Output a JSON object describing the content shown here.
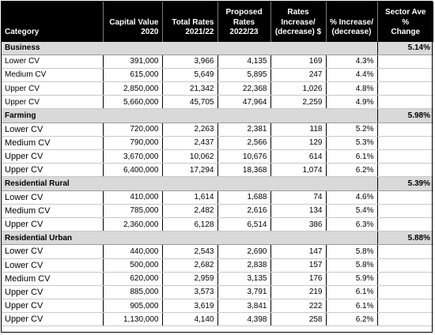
{
  "headers": [
    [
      "Category"
    ],
    [
      "Capital Value",
      "2020"
    ],
    [
      "Total Rates",
      "2021/22"
    ],
    [
      "Proposed",
      "Rates",
      "2022/23"
    ],
    [
      "Rates",
      "Increase/",
      "(decrease) $"
    ],
    [
      "% Increase/",
      "(decrease)"
    ],
    [
      "Sector Ave %",
      "Change"
    ]
  ],
  "groups": [
    {
      "name": "Business",
      "sector_avg": "5.14%",
      "small": true,
      "rows": [
        {
          "cv": "Lower CV",
          "capital": "391,000",
          "total": "3,966",
          "proposed": "4,135",
          "change": "169",
          "pct": "4.3%"
        },
        {
          "cv": "Medium CV",
          "capital": "615,000",
          "total": "5,649",
          "proposed": "5,895",
          "change": "247",
          "pct": "4.4%"
        },
        {
          "cv": "Upper CV",
          "capital": "2,850,000",
          "total": "21,342",
          "proposed": "22,368",
          "change": "1,026",
          "pct": "4.8%"
        },
        {
          "cv": "Upper CV",
          "capital": "5,660,000",
          "total": "45,705",
          "proposed": "47,964",
          "change": "2,259",
          "pct": "4.9%"
        }
      ]
    },
    {
      "name": "Farming",
      "sector_avg": "5.98%",
      "small": false,
      "rows": [
        {
          "cv": "Lower CV",
          "capital": "720,000",
          "total": "2,263",
          "proposed": "2,381",
          "change": "118",
          "pct": "5.2%"
        },
        {
          "cv": "Medium CV",
          "capital": "790,000",
          "total": "2,437",
          "proposed": "2,566",
          "change": "129",
          "pct": "5.3%"
        },
        {
          "cv": "Upper CV",
          "capital": "3,670,000",
          "total": "10,062",
          "proposed": "10,676",
          "change": "614",
          "pct": "6.1%"
        },
        {
          "cv": "Upper CV",
          "capital": "6,400,000",
          "total": "17,294",
          "proposed": "18,368",
          "change": "1,074",
          "pct": "6.2%"
        }
      ]
    },
    {
      "name": "Residential Rural",
      "sector_avg": "5.39%",
      "small": false,
      "rows": [
        {
          "cv": "Lower CV",
          "capital": "410,000",
          "total": "1,614",
          "proposed": "1,688",
          "change": "74",
          "pct": "4.6%"
        },
        {
          "cv": "Medium CV",
          "capital": "785,000",
          "total": "2,482",
          "proposed": "2,616",
          "change": "134",
          "pct": "5.4%"
        },
        {
          "cv": "Upper CV",
          "capital": "2,360,000",
          "total": "6,128",
          "proposed": "6,514",
          "change": "386",
          "pct": "6.3%"
        }
      ]
    },
    {
      "name": "Residential Urban",
      "sector_avg": "5.88%",
      "small": false,
      "rows": [
        {
          "cv": "Lower CV",
          "capital": "440,000",
          "total": "2,543",
          "proposed": "2,690",
          "change": "147",
          "pct": "5.8%"
        },
        {
          "cv": "Lower CV",
          "capital": "500,000",
          "total": "2,682",
          "proposed": "2,838",
          "change": "157",
          "pct": "5.8%"
        },
        {
          "cv": "Medium CV",
          "capital": "620,000",
          "total": "2,959",
          "proposed": "3,135",
          "change": "176",
          "pct": "5.9%"
        },
        {
          "cv": "Upper CV",
          "capital": "885,000",
          "total": "3,573",
          "proposed": "3,791",
          "change": "219",
          "pct": "6.1%"
        },
        {
          "cv": "Upper CV",
          "capital": "905,000",
          "total": "3,619",
          "proposed": "3,841",
          "change": "222",
          "pct": "6.1%"
        },
        {
          "cv": "Upper CV",
          "capital": "1,130,000",
          "total": "4,140",
          "proposed": "4,398",
          "change": "258",
          "pct": "6.2%"
        }
      ]
    }
  ]
}
